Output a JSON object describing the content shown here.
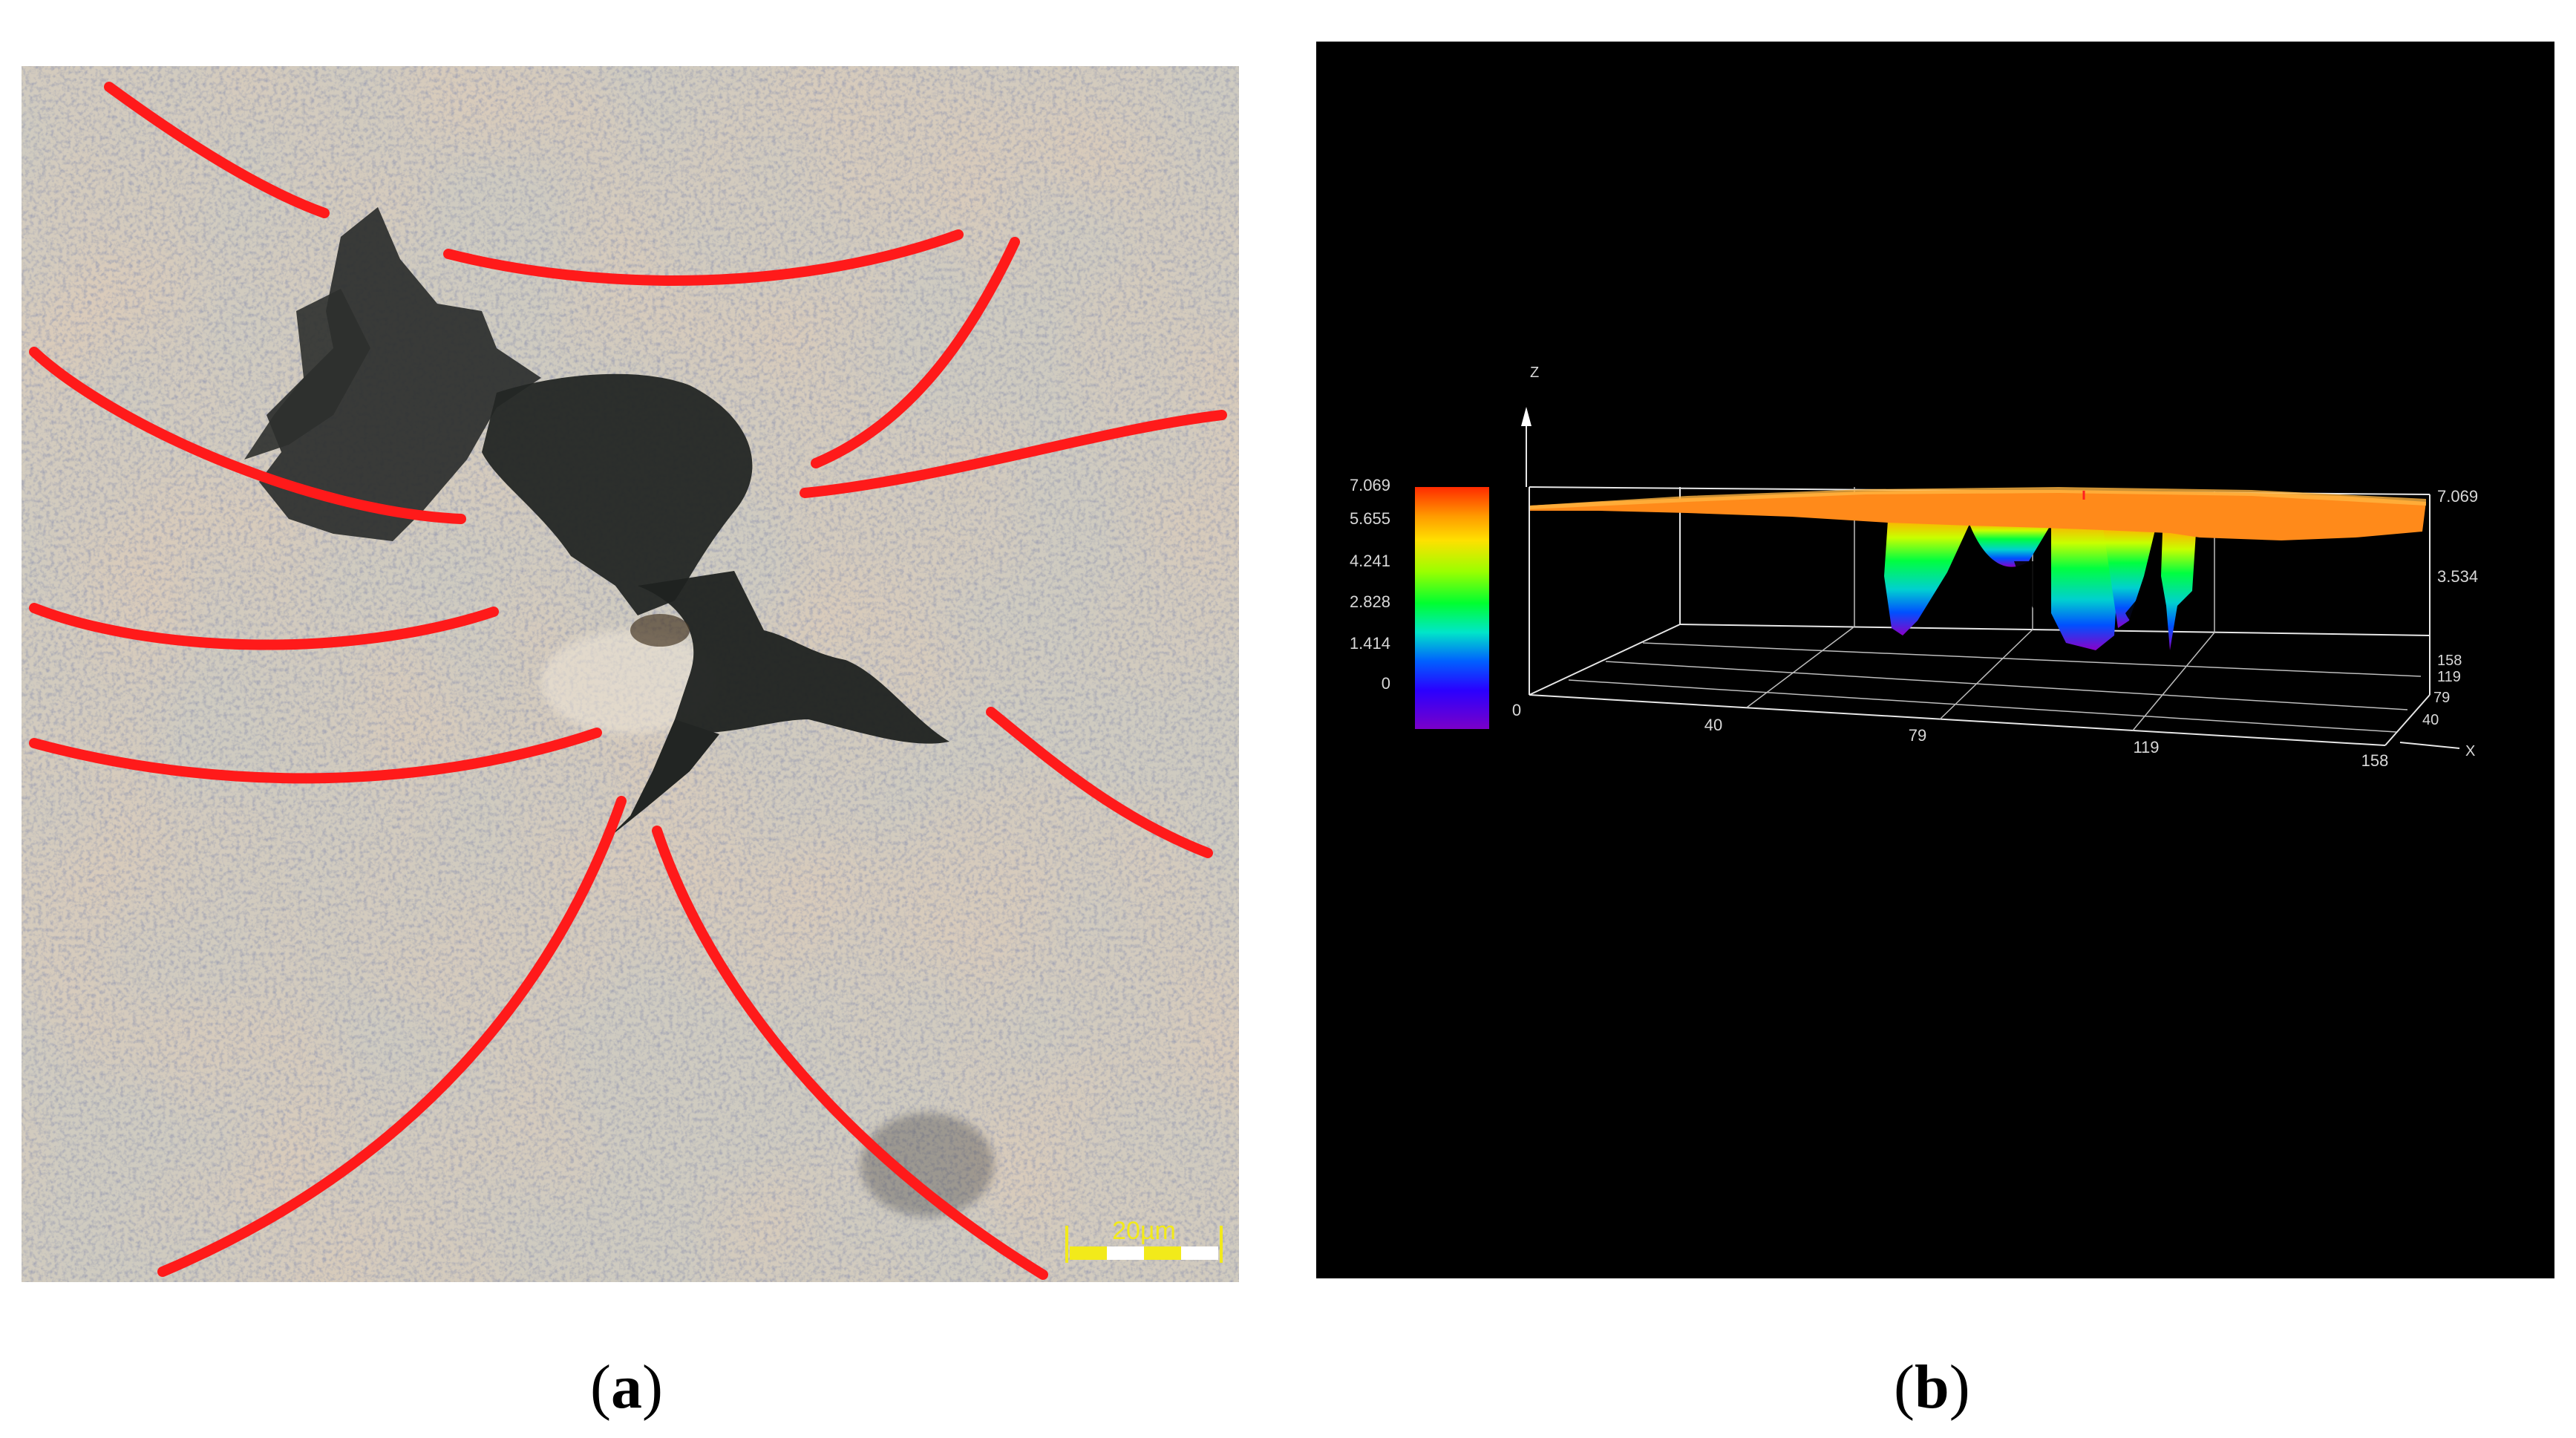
{
  "panel_a": {
    "scale_bar_label": "20µm",
    "colors": {
      "boundary_lines": "#ff1a1a",
      "scale_bar": "#f2ea1a"
    }
  },
  "panel_b": {
    "z_axis_label": "Z",
    "x_axis_label": "X",
    "colorbar_ticks": [
      "7.069",
      "5.655",
      "4.241",
      "2.828",
      "1.414",
      "0"
    ],
    "right_z_ticks": [
      "7.069",
      "3.534"
    ],
    "x_ticks": [
      "0",
      "40",
      "79",
      "119",
      "158"
    ],
    "y_ticks": [
      "158",
      "119",
      "79",
      "40"
    ],
    "colors": {
      "background": "#000000",
      "axes": "#e6e6e6",
      "surface_top": "#ff8a1a"
    }
  },
  "captions": {
    "a": {
      "open": "(",
      "letter": "a",
      "close": ")"
    },
    "b": {
      "open": "(",
      "letter": "b",
      "close": ")"
    }
  }
}
